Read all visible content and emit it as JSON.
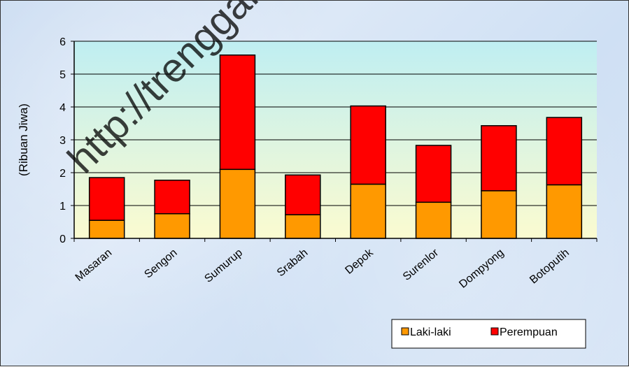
{
  "watermark": "http://trenggalek",
  "chart_data": {
    "type": "bar",
    "stacked": true,
    "categories": [
      "Masaran",
      "Sengon",
      "Sumurup",
      "Srabah",
      "Depok",
      "Surenlor",
      "Dompyong",
      "Botoputih"
    ],
    "series": [
      {
        "name": "Laki-laki",
        "color": "#ff9900",
        "values": [
          0.55,
          0.75,
          2.1,
          0.72,
          1.65,
          1.1,
          1.45,
          1.63
        ]
      },
      {
        "name": "Perempuan",
        "color": "#ff0000",
        "values": [
          1.3,
          1.02,
          3.48,
          1.21,
          2.38,
          1.73,
          1.98,
          2.05
        ]
      }
    ],
    "ylabel": "(Ribuan Jiwa)",
    "ylim": [
      0,
      6
    ],
    "yticks": [
      "0",
      "1",
      "2",
      "3",
      "4",
      "5",
      "6"
    ],
    "grid": true,
    "legend_position": "bottom-right"
  }
}
